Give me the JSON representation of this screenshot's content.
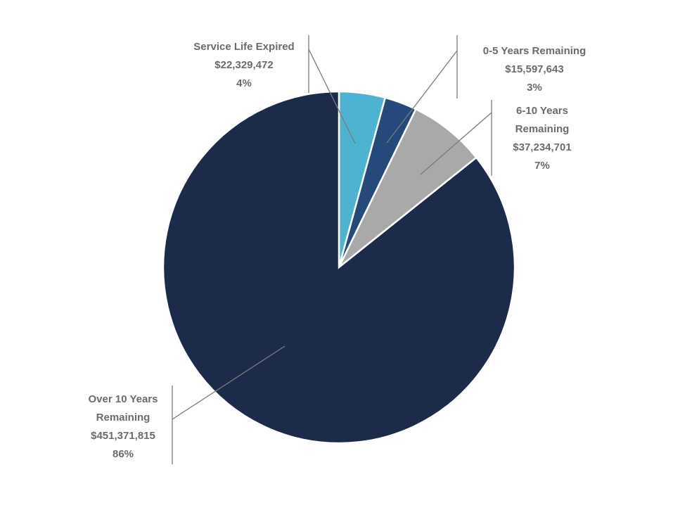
{
  "chart_data": {
    "type": "pie",
    "categories": [
      "Service Life Expired",
      "0-5 Years Remaining",
      "6-10 Years Remaining",
      "Over 10 Years Remaining"
    ],
    "values": [
      22329472,
      15597643,
      37234701,
      451371815
    ],
    "colors": [
      "#4cb3d1",
      "#24497a",
      "#a9a9a9",
      "#1d2b4a"
    ],
    "start_angle_deg": 0,
    "direction": "clockwise",
    "labels": [
      {
        "lines": [
          "Service Life Expired",
          "$22,329,472",
          "4%"
        ],
        "bar_side": "right",
        "align": "middle"
      },
      {
        "lines": [
          "0-5 Years Remaining",
          "$15,597,643",
          "3%"
        ],
        "bar_side": "left",
        "align": "middle"
      },
      {
        "lines": [
          "6-10 Years",
          "Remaining",
          "$37,234,701",
          "7%"
        ],
        "bar_side": "left",
        "align": "middle"
      },
      {
        "lines": [
          "Over 10 Years",
          "Remaining",
          "$451,371,815",
          "86%"
        ],
        "bar_side": "right",
        "align": "middle"
      }
    ]
  }
}
